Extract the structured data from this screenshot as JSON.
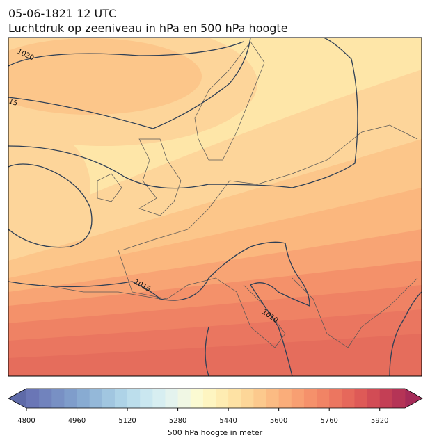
{
  "header": {
    "title": "05-06-1821 12 UTC",
    "subtitle": "Luchtdruk op zeeniveau in hPa en 500 hPa hoogte"
  },
  "map": {
    "contour_labels": [
      "1020",
      "15",
      "1015",
      "1010"
    ]
  },
  "colorbar": {
    "label": "500 hPa hoogte in meter",
    "lim": [
      4800,
      6000
    ],
    "ticks": [
      4800,
      4960,
      5120,
      5280,
      5440,
      5600,
      5760,
      5920
    ],
    "colors": [
      "#6a76b6",
      "#7183bd",
      "#7890c4",
      "#7f9dcb",
      "#88abd2",
      "#94b8d9",
      "#a1c6e0",
      "#aed3e7",
      "#bcdeec",
      "#cae7f0",
      "#d7eef1",
      "#e4f3ee",
      "#f0f7e4",
      "#fbfad2",
      "#fef5c1",
      "#feecb2",
      "#fee2a4",
      "#fdd698",
      "#fcc98d",
      "#fbbb83",
      "#faad7a",
      "#f89f72",
      "#f5916b",
      "#f18465",
      "#ec7660",
      "#e6685b",
      "#de5a57",
      "#d24c55",
      "#c43f55",
      "#b53456"
    ],
    "under_color": "#5e6aa8",
    "over_color": "#a52b58"
  }
}
